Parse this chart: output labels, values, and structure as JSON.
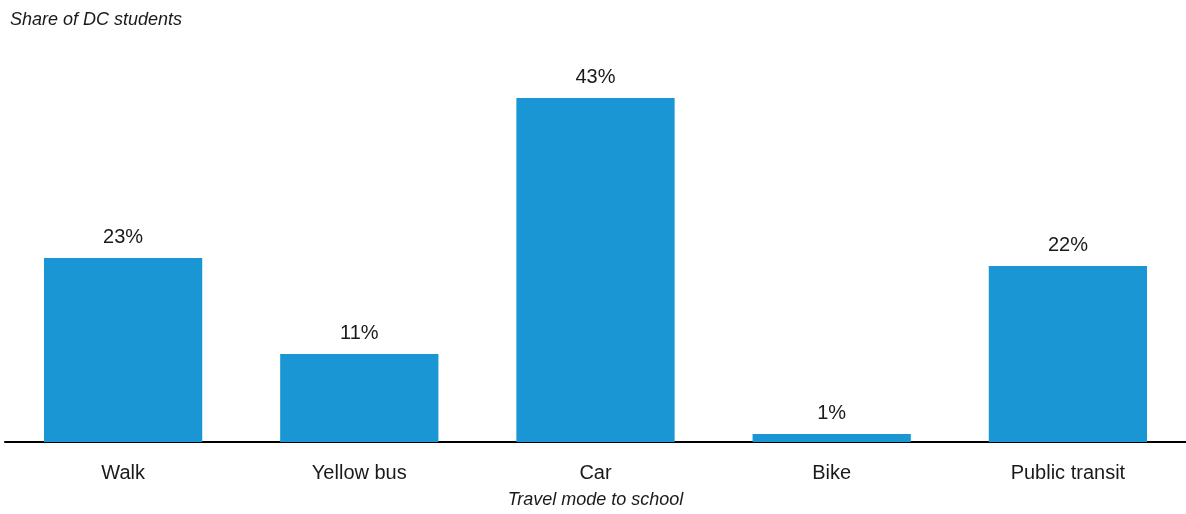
{
  "chart_data": {
    "type": "bar",
    "ylabel": "Share of DC students",
    "xlabel": "Travel mode to school",
    "categories": [
      "Walk",
      "Yellow bus",
      "Car",
      "Bike",
      "Public transit"
    ],
    "values": [
      23,
      11,
      43,
      1,
      22
    ],
    "color": "#1996d3",
    "value_labels": [
      "23%",
      "11%",
      "43%",
      "1%",
      "22%"
    ]
  }
}
